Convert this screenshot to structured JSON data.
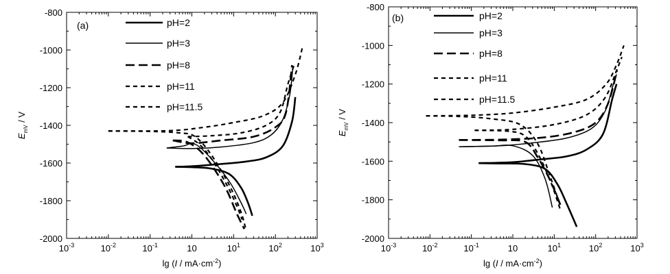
{
  "chart_data": [
    {
      "type": "line",
      "panel": "(a)",
      "xlabel_prefix": "lg (",
      "xlabel_var": "I",
      "xlabel_units": " / mA·cm",
      "xlabel_sup": "-2",
      "xlabel_suffix": ")",
      "ylabel_var": "E",
      "ylabel_sub": "mV",
      "ylabel_units": " / V",
      "xscale": "log",
      "xlim": [
        0.001,
        1000
      ],
      "ylim": [
        -2000,
        -800
      ],
      "x_ticks": [
        {
          "base": "10",
          "exp": "-3"
        },
        {
          "base": "10",
          "exp": "-2"
        },
        {
          "base": "10",
          "exp": "-1"
        },
        {
          "base": "10",
          "exp": ""
        },
        {
          "base": "10",
          "exp": "1"
        },
        {
          "base": "10",
          "exp": "2"
        },
        {
          "base": "10",
          "exp": "3"
        }
      ],
      "y_ticks": [
        "-800",
        "-1000",
        "-1200",
        "-1400",
        "-1600",
        "-1800",
        "-2000"
      ],
      "legend_position": "top-center",
      "series": [
        {
          "name": "pH=2",
          "style": "solid-thick",
          "cathodic": [
            [
              0.4,
              -1620
            ],
            [
              1,
              -1622
            ],
            [
              3,
              -1630
            ],
            [
              8,
              -1660
            ],
            [
              15,
              -1730
            ],
            [
              22,
              -1810
            ],
            [
              28,
              -1880
            ]
          ],
          "anodic": [
            [
              0.4,
              -1620
            ],
            [
              1,
              -1617
            ],
            [
              5,
              -1605
            ],
            [
              20,
              -1592
            ],
            [
              60,
              -1570
            ],
            [
              150,
              -1510
            ],
            [
              250,
              -1380
            ],
            [
              300,
              -1250
            ]
          ]
        },
        {
          "name": "pH=3",
          "style": "solid-thin",
          "cathodic": [
            [
              0.25,
              -1520
            ],
            [
              0.6,
              -1510
            ],
            [
              1.2,
              -1500
            ],
            [
              3,
              -1580
            ],
            [
              8,
              -1700
            ],
            [
              15,
              -1810
            ],
            [
              20,
              -1870
            ]
          ],
          "anodic": [
            [
              0.25,
              -1520
            ],
            [
              1,
              -1523
            ],
            [
              5,
              -1515
            ],
            [
              30,
              -1492
            ],
            [
              80,
              -1450
            ],
            [
              150,
              -1370
            ],
            [
              220,
              -1240
            ],
            [
              260,
              -1100
            ]
          ]
        },
        {
          "name": "pH=8",
          "style": "dash-long",
          "cathodic": [
            [
              0.35,
              -1480
            ],
            [
              0.8,
              -1490
            ],
            [
              2,
              -1560
            ],
            [
              6,
              -1720
            ],
            [
              12,
              -1870
            ],
            [
              18,
              -1950
            ]
          ],
          "anodic": [
            [
              0.35,
              -1480
            ],
            [
              1,
              -1495
            ],
            [
              5,
              -1480
            ],
            [
              30,
              -1460
            ],
            [
              100,
              -1410
            ],
            [
              180,
              -1330
            ],
            [
              250,
              -1080
            ]
          ]
        },
        {
          "name": "pH=11",
          "style": "dash-short",
          "cathodic": [
            [
              0.8,
              -1460
            ],
            [
              1.5,
              -1500
            ],
            [
              3,
              -1580
            ],
            [
              7,
              -1720
            ],
            [
              12,
              -1830
            ],
            [
              16,
              -1900
            ]
          ],
          "anodic": [
            [
              0.8,
              -1460
            ],
            [
              3,
              -1455
            ],
            [
              15,
              -1440
            ],
            [
              60,
              -1400
            ],
            [
              130,
              -1330
            ],
            [
              200,
              -1180
            ],
            [
              280,
              -1080
            ]
          ]
        },
        {
          "name": "pH=11.5",
          "style": "dash-short",
          "cathodic": [
            [
              0.01,
              -1430
            ],
            [
              0.1,
              -1432
            ],
            [
              0.5,
              -1440
            ],
            [
              1.2,
              -1460
            ],
            [
              3,
              -1560
            ],
            [
              8,
              -1720
            ],
            [
              15,
              -1860
            ],
            [
              20,
              -1960
            ]
          ],
          "anodic": [
            [
              0.01,
              -1430
            ],
            [
              0.3,
              -1428
            ],
            [
              2,
              -1410
            ],
            [
              10,
              -1385
            ],
            [
              50,
              -1350
            ],
            [
              150,
              -1280
            ],
            [
              300,
              -1130
            ],
            [
              450,
              -980
            ]
          ]
        }
      ]
    },
    {
      "type": "line",
      "panel": "(b)",
      "xlabel_prefix": "lg (",
      "xlabel_var": "I",
      "xlabel_units": " / mA·cm",
      "xlabel_sup": "-2",
      "xlabel_suffix": ")",
      "ylabel_var": "E",
      "ylabel_sub": "mV",
      "ylabel_units": " / V",
      "xscale": "log",
      "xlim": [
        0.001,
        1000
      ],
      "ylim": [
        -2000,
        -800
      ],
      "x_ticks": [
        {
          "base": "10",
          "exp": "-3"
        },
        {
          "base": "10",
          "exp": "-2"
        },
        {
          "base": "10",
          "exp": "-1"
        },
        {
          "base": "10",
          "exp": ""
        },
        {
          "base": "10",
          "exp": "1"
        },
        {
          "base": "10",
          "exp": "2"
        },
        {
          "base": "10",
          "exp": "3"
        }
      ],
      "y_ticks": [
        "-800",
        "-1000",
        "-1200",
        "-1400",
        "-1600",
        "-1800",
        "-2000"
      ],
      "legend_position": "top-center",
      "series": [
        {
          "name": "pH=2",
          "style": "solid-thick",
          "cathodic": [
            [
              0.15,
              -1610
            ],
            [
              0.5,
              -1612
            ],
            [
              2,
              -1615
            ],
            [
              6,
              -1640
            ],
            [
              12,
              -1720
            ],
            [
              20,
              -1820
            ],
            [
              35,
              -1940
            ]
          ],
          "anodic": [
            [
              0.15,
              -1610
            ],
            [
              1,
              -1605
            ],
            [
              5,
              -1590
            ],
            [
              20,
              -1575
            ],
            [
              60,
              -1540
            ],
            [
              150,
              -1460
            ],
            [
              250,
              -1280
            ],
            [
              320,
              -1200
            ]
          ]
        },
        {
          "name": "pH=3",
          "style": "solid-thin",
          "cathodic": [
            [
              0.05,
              -1525
            ],
            [
              0.3,
              -1522
            ],
            [
              1,
              -1520
            ],
            [
              3,
              -1570
            ],
            [
              6,
              -1690
            ],
            [
              9,
              -1840
            ]
          ],
          "anodic": [
            [
              0.05,
              -1525
            ],
            [
              0.5,
              -1520
            ],
            [
              3,
              -1505
            ],
            [
              20,
              -1480
            ],
            [
              80,
              -1430
            ],
            [
              170,
              -1340
            ],
            [
              260,
              -1210
            ],
            [
              320,
              -1150
            ]
          ]
        },
        {
          "name": "pH=8",
          "style": "dash-long",
          "cathodic": [
            [
              0.05,
              -1490
            ],
            [
              0.5,
              -1492
            ],
            [
              2,
              -1500
            ],
            [
              4,
              -1580
            ],
            [
              8,
              -1700
            ],
            [
              15,
              -1840
            ]
          ],
          "anodic": [
            [
              0.05,
              -1490
            ],
            [
              0.5,
              -1488
            ],
            [
              5,
              -1478
            ],
            [
              30,
              -1450
            ],
            [
              100,
              -1400
            ],
            [
              200,
              -1300
            ],
            [
              330,
              -1130
            ]
          ]
        },
        {
          "name": "pH=11",
          "style": "dash-short",
          "cathodic": [
            [
              0.12,
              -1440
            ],
            [
              0.8,
              -1445
            ],
            [
              2,
              -1470
            ],
            [
              4,
              -1560
            ],
            [
              8,
              -1700
            ],
            [
              14,
              -1850
            ]
          ],
          "anodic": [
            [
              0.12,
              -1440
            ],
            [
              1,
              -1435
            ],
            [
              10,
              -1410
            ],
            [
              60,
              -1360
            ],
            [
              170,
              -1270
            ],
            [
              320,
              -1130
            ],
            [
              430,
              -1060
            ]
          ]
        },
        {
          "name": "pH=11.5",
          "style": "dash-short",
          "cathodic": [
            [
              0.008,
              -1365
            ],
            [
              0.05,
              -1368
            ],
            [
              0.3,
              -1380
            ],
            [
              1.5,
              -1410
            ],
            [
              4,
              -1510
            ],
            [
              8,
              -1680
            ],
            [
              14,
              -1830
            ]
          ],
          "anodic": [
            [
              0.008,
              -1365
            ],
            [
              0.1,
              -1362
            ],
            [
              1,
              -1350
            ],
            [
              10,
              -1320
            ],
            [
              60,
              -1280
            ],
            [
              180,
              -1200
            ],
            [
              320,
              -1100
            ],
            [
              480,
              -1000
            ]
          ]
        }
      ]
    }
  ]
}
